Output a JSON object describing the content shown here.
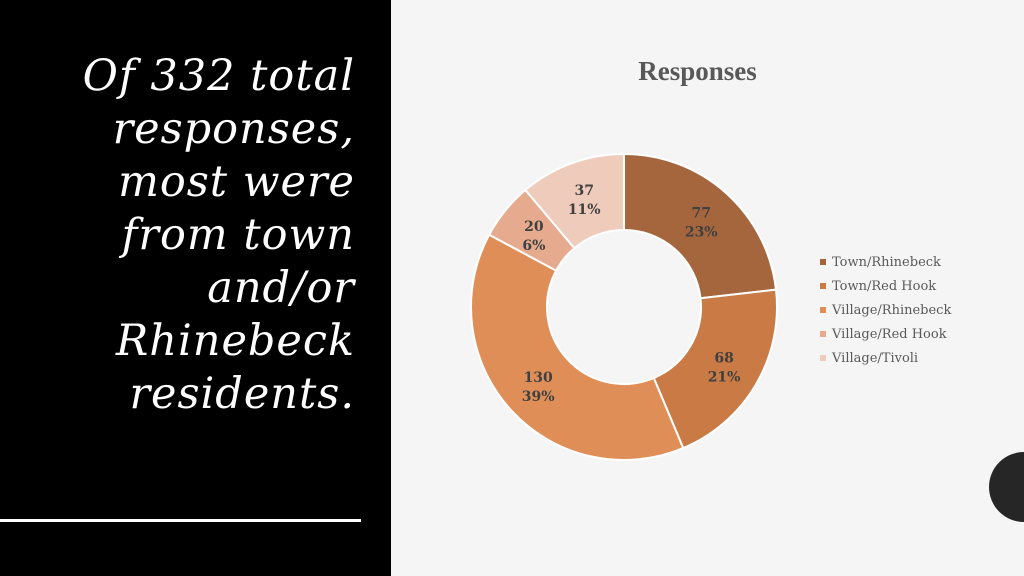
{
  "headline": "Of 332 total responses, most were from town and/or Rhinebeck residents.",
  "chart_data": {
    "type": "pie",
    "title": "Responses",
    "legend_position": "right",
    "categories": [
      "Town/Rhinebeck",
      "Town/Red Hook",
      "Village/Rhinebeck",
      "Village/Red Hook",
      "Village/Tivoli"
    ],
    "values": [
      77,
      68,
      130,
      20,
      37
    ],
    "percents": [
      "23%",
      "21%",
      "39%",
      "6%",
      "11%"
    ],
    "colors": [
      "#a5663d",
      "#c97a45",
      "#e08e57",
      "#e6ab8e",
      "#efcbbb"
    ]
  }
}
